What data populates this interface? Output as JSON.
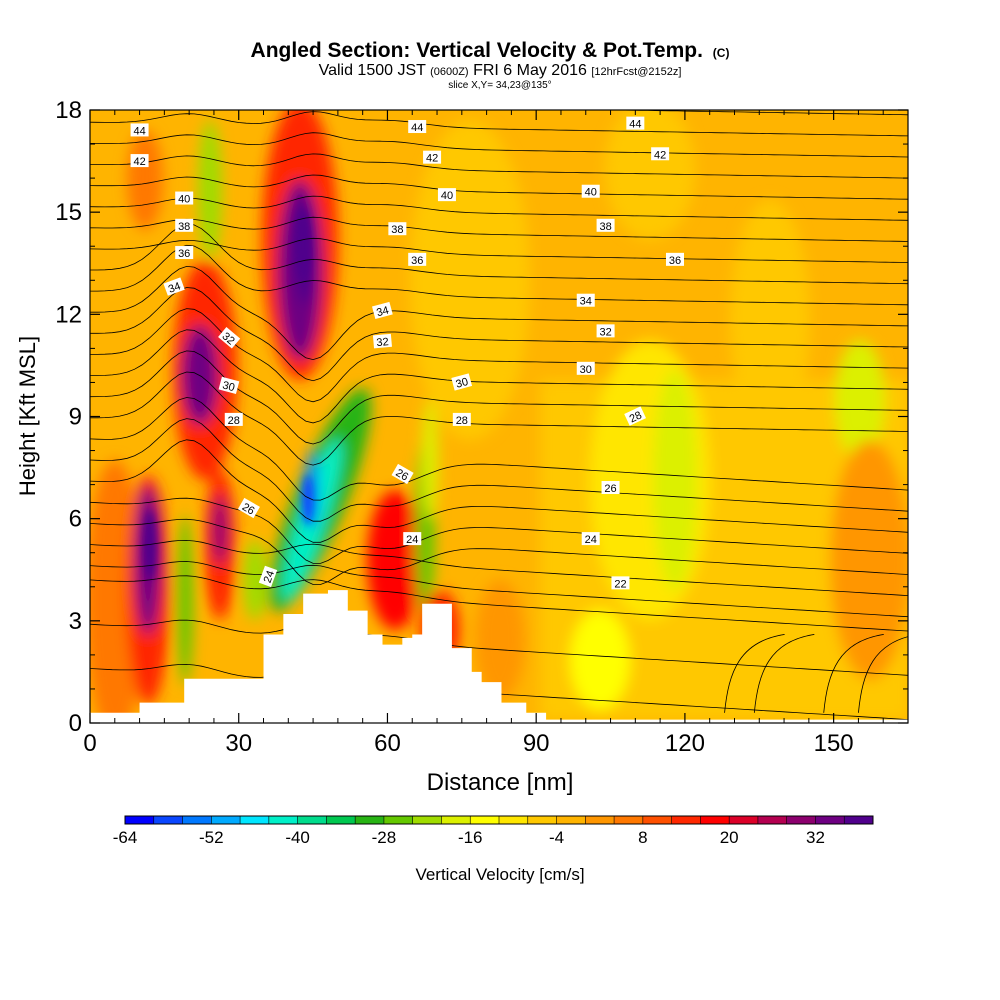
{
  "header": {
    "title_main": "Angled Section: Vertical Velocity & Pot.Temp.",
    "title_unit": "(C)",
    "valid_prefix": "Valid 1500 JST",
    "valid_utc": "(0600Z)",
    "valid_date": "FRI 6 May 2016",
    "valid_fcst": "[12hrFcst@2152z]",
    "slice": "slice X,Y= 34,23@135°"
  },
  "chart_data": {
    "type": "heatmap",
    "xlabel": "Distance [nm]",
    "ylabel": "Height [Kft MSL]",
    "xlim": [
      0,
      165
    ],
    "ylim": [
      0,
      18
    ],
    "x_ticks": [
      "0",
      "30",
      "60",
      "90",
      "120",
      "150"
    ],
    "x_tick_values": [
      0,
      30,
      60,
      90,
      120,
      150
    ],
    "y_ticks": [
      "0",
      "3",
      "6",
      "9",
      "12",
      "15",
      "18"
    ],
    "y_tick_values": [
      0,
      3,
      6,
      9,
      12,
      15,
      18
    ],
    "colorbar": {
      "label": "Vertical Velocity [cm/s]",
      "tick_labels": [
        "-64",
        "-52",
        "-40",
        "-28",
        "-16",
        "-4",
        "8",
        "20",
        "32"
      ],
      "colors": [
        "#0000ff",
        "#0a46ff",
        "#0078ff",
        "#00aaff",
        "#00e6ff",
        "#00f0c8",
        "#00dc8c",
        "#00c850",
        "#28b414",
        "#64c800",
        "#a0dc00",
        "#dcf000",
        "#ffff00",
        "#ffe600",
        "#ffc800",
        "#ffb400",
        "#ff9600",
        "#ff7800",
        "#ff5000",
        "#ff2800",
        "#ff0000",
        "#dc0028",
        "#b40050",
        "#8c006e",
        "#6e0082",
        "#50008c"
      ]
    },
    "terrain_profile": [
      [
        10,
        0.6
      ],
      [
        19,
        1.3
      ],
      [
        35,
        2.6
      ],
      [
        39,
        3.2
      ],
      [
        43,
        3.8
      ],
      [
        48,
        3.9
      ],
      [
        52,
        3.3
      ],
      [
        56,
        2.6
      ],
      [
        59,
        2.3
      ],
      [
        63,
        2.5
      ],
      [
        65,
        2.6
      ],
      [
        67,
        3.5
      ],
      [
        70,
        3.5
      ],
      [
        73,
        2.2
      ],
      [
        77,
        1.5
      ],
      [
        79,
        1.2
      ],
      [
        83,
        0.6
      ],
      [
        88,
        0.3
      ],
      [
        92,
        0.1
      ]
    ],
    "contour_labels": [
      {
        "text": "44",
        "x": 10,
        "y": 17.4,
        "rot": 0
      },
      {
        "text": "42",
        "x": 10,
        "y": 16.5,
        "rot": 0
      },
      {
        "text": "40",
        "x": 19,
        "y": 15.4,
        "rot": 0
      },
      {
        "text": "38",
        "x": 19,
        "y": 14.6,
        "rot": 0
      },
      {
        "text": "36",
        "x": 19,
        "y": 13.8,
        "rot": 0
      },
      {
        "text": "34",
        "x": 17,
        "y": 12.8,
        "rot": -20
      },
      {
        "text": "32",
        "x": 28,
        "y": 11.3,
        "rot": 40
      },
      {
        "text": "30",
        "x": 28,
        "y": 9.9,
        "rot": 15
      },
      {
        "text": "28",
        "x": 29,
        "y": 8.9,
        "rot": 0
      },
      {
        "text": "26",
        "x": 32,
        "y": 6.3,
        "rot": 30
      },
      {
        "text": "24",
        "x": 36,
        "y": 4.3,
        "rot": -70
      },
      {
        "text": "44",
        "x": 66,
        "y": 17.5,
        "rot": 0
      },
      {
        "text": "42",
        "x": 69,
        "y": 16.6,
        "rot": 0
      },
      {
        "text": "40",
        "x": 72,
        "y": 15.5,
        "rot": 0
      },
      {
        "text": "38",
        "x": 62,
        "y": 14.5,
        "rot": 0
      },
      {
        "text": "36",
        "x": 66,
        "y": 13.6,
        "rot": 0
      },
      {
        "text": "34",
        "x": 59,
        "y": 12.1,
        "rot": -15
      },
      {
        "text": "32",
        "x": 59,
        "y": 11.2,
        "rot": -5
      },
      {
        "text": "30",
        "x": 75,
        "y": 10.0,
        "rot": -15
      },
      {
        "text": "28",
        "x": 75,
        "y": 8.9,
        "rot": 0
      },
      {
        "text": "26",
        "x": 63,
        "y": 7.3,
        "rot": 30
      },
      {
        "text": "24",
        "x": 65,
        "y": 5.4,
        "rot": 0
      },
      {
        "text": "44",
        "x": 110,
        "y": 17.6,
        "rot": 0
      },
      {
        "text": "42",
        "x": 115,
        "y": 16.7,
        "rot": 0
      },
      {
        "text": "40",
        "x": 101,
        "y": 15.6,
        "rot": 0
      },
      {
        "text": "38",
        "x": 104,
        "y": 14.6,
        "rot": 0
      },
      {
        "text": "36",
        "x": 118,
        "y": 13.6,
        "rot": 0
      },
      {
        "text": "34",
        "x": 100,
        "y": 12.4,
        "rot": 0
      },
      {
        "text": "32",
        "x": 104,
        "y": 11.5,
        "rot": 0
      },
      {
        "text": "30",
        "x": 100,
        "y": 10.4,
        "rot": 0
      },
      {
        "text": "28",
        "x": 110,
        "y": 9.0,
        "rot": -25
      },
      {
        "text": "26",
        "x": 105,
        "y": 6.9,
        "rot": 0
      },
      {
        "text": "24",
        "x": 101,
        "y": 5.4,
        "rot": 0
      },
      {
        "text": "22",
        "x": 107,
        "y": 4.1,
        "rot": 0
      }
    ]
  }
}
